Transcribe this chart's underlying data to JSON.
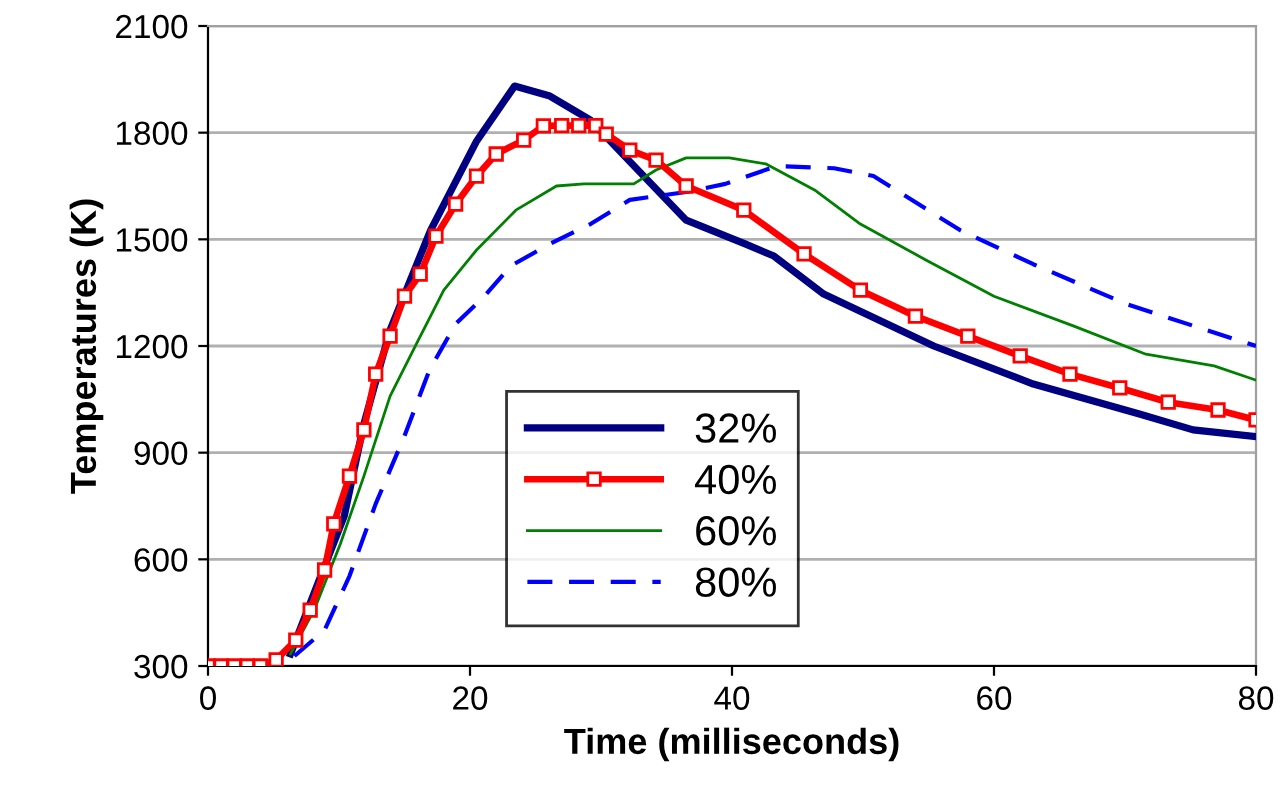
{
  "chart_data": {
    "type": "line",
    "xlabel": "Time (milliseconds)",
    "ylabel": "Temperatures (K)",
    "xlim": [
      0,
      80
    ],
    "ylim": [
      300,
      2100
    ],
    "xticks": [
      0,
      20,
      40,
      60,
      80
    ],
    "yticks": [
      300,
      600,
      900,
      1200,
      1500,
      1800,
      2100
    ],
    "grid": "y",
    "legend": "bottom",
    "series": [
      {
        "name": "32%",
        "color": "#000080",
        "line_style": "solid",
        "marker": "none",
        "x": [
          6.3,
          8.2,
          10.4,
          11.9,
          13.9,
          17,
          20.5,
          23.4,
          26.1,
          29.2,
          31.8,
          36.5,
          41,
          43.2,
          47,
          55.4,
          63,
          71.1,
          75.2,
          80
        ],
        "values": [
          334,
          514,
          722,
          981,
          1245,
          1526,
          1776,
          1931,
          1903,
          1835,
          1734,
          1554,
          1487,
          1453,
          1346,
          1200,
          1093,
          1009,
          964,
          945
        ]
      },
      {
        "name": "40%",
        "color": "#ff0000",
        "line_style": "solid",
        "marker": "square",
        "x": [
          0,
          1,
          2,
          3,
          4,
          5.2,
          6.7,
          7.8,
          8.9,
          9.6,
          10.8,
          11.9,
          12.8,
          13.9,
          15,
          16.2,
          17.4,
          18.9,
          20.5,
          22,
          24.1,
          25.6,
          27,
          28.3,
          29.6,
          30.4,
          32.2,
          34.2,
          36.5,
          40.9,
          45.5,
          49.8,
          54,
          58,
          62,
          65.8,
          69.6,
          73.3,
          77.1,
          80
        ],
        "values": [
          300,
          300,
          300,
          300,
          300,
          317,
          373,
          457,
          570,
          700,
          834,
          964,
          1121,
          1228,
          1340,
          1402,
          1509,
          1599,
          1678,
          1740,
          1779,
          1819,
          1820,
          1820,
          1820,
          1796,
          1751,
          1723,
          1650,
          1582,
          1459,
          1357,
          1284,
          1228,
          1172,
          1121,
          1082,
          1042,
          1020,
          992
        ]
      },
      {
        "name": "60%",
        "color": "#008000",
        "line_style": "solid",
        "marker": "none",
        "x": [
          6.3,
          8.1,
          10.1,
          11.9,
          13.9,
          15.9,
          18,
          20.5,
          23.5,
          26.6,
          28.7,
          32.5,
          34.2,
          36.5,
          39.8,
          42.6,
          46.3,
          49.8,
          54.8,
          60,
          66.1,
          71.6,
          76.8,
          80
        ],
        "values": [
          334,
          457,
          643,
          834,
          1059,
          1205,
          1357,
          1470,
          1582,
          1650,
          1656,
          1656,
          1695,
          1729,
          1729,
          1712,
          1639,
          1543,
          1442,
          1340,
          1256,
          1177,
          1144,
          1104
        ]
      },
      {
        "name": "80%",
        "color": "#0000ff",
        "line_style": "dashed",
        "marker": "none",
        "x": [
          6.6,
          8.9,
          10.8,
          12.8,
          15,
          16.9,
          18.9,
          21.1,
          23.1,
          26.1,
          29.2,
          32.2,
          36.5,
          39.5,
          43.4,
          47.8,
          50.8,
          57.4,
          63,
          70.1,
          76.2,
          80
        ],
        "values": [
          328,
          401,
          553,
          756,
          947,
          1132,
          1262,
          1340,
          1425,
          1487,
          1543,
          1611,
          1633,
          1656,
          1706,
          1700,
          1678,
          1526,
          1430,
          1318,
          1245,
          1200
        ]
      }
    ]
  }
}
